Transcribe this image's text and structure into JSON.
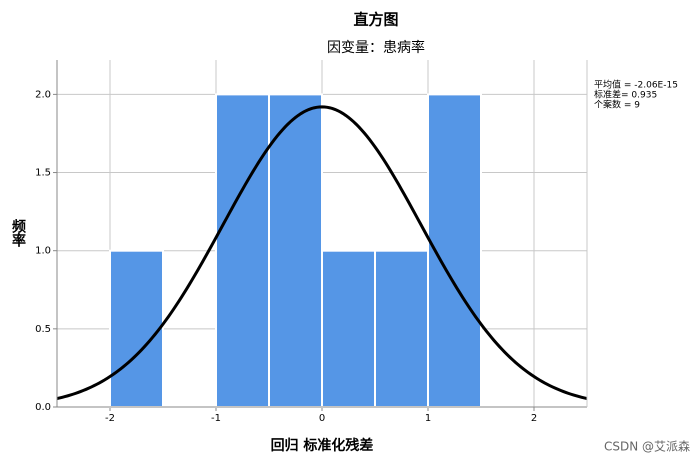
{
  "chart_data": {
    "type": "histogram",
    "title": "直方图",
    "subtitle": "因变量：患病率",
    "x_label": "回归 标准化残差",
    "y_label": "频率",
    "bins": [
      -2,
      -1.5,
      -1,
      -0.5,
      0,
      0.5,
      1,
      1.5
    ],
    "values": [
      1,
      0,
      2,
      2,
      1,
      1,
      2
    ],
    "color": "#5596e6",
    "xlim": [
      -2.5,
      2.5
    ],
    "xticks": [
      -2,
      -1,
      0,
      1,
      2
    ],
    "ylim": [
      0,
      2.22
    ],
    "yticks": [
      {
        "value": 0,
        "label": "0.0"
      },
      {
        "value": 0.5,
        "label": "0.5"
      },
      {
        "value": 1,
        "label": "1.0"
      },
      {
        "value": 1.5,
        "label": "1.5"
      },
      {
        "value": 2,
        "label": "2.0"
      }
    ],
    "grid": true,
    "curve_color": "#000000",
    "stats": {
      "mean": {
        "value": -2.06e-15,
        "label": "平均值 = -2.06E-15"
      },
      "sd": {
        "value": 0.935,
        "label": "标准差= 0.935"
      },
      "n": {
        "value": 9,
        "label": "个案数 = 9"
      }
    },
    "watermark": "CSDN @艾派森"
  }
}
